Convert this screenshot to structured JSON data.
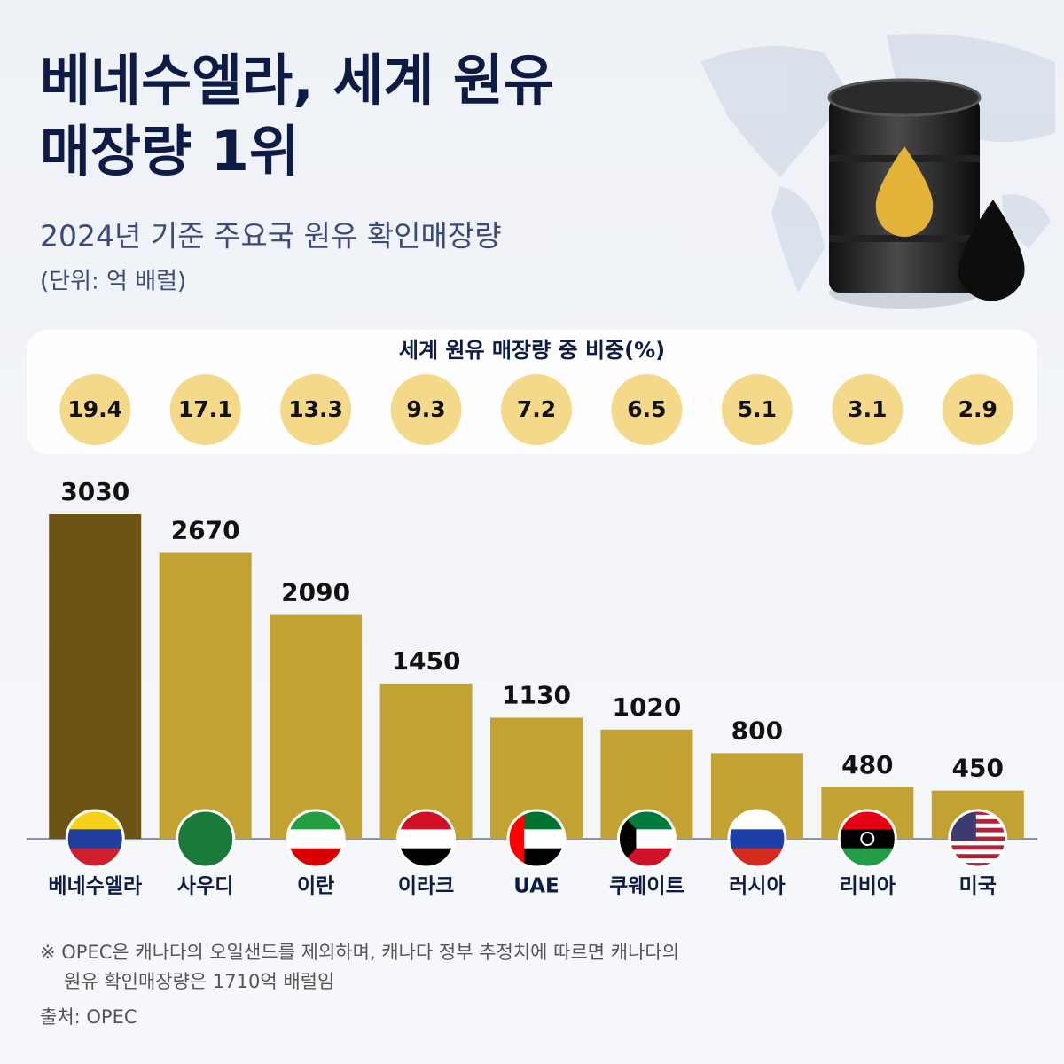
{
  "chart_data": {
    "type": "bar",
    "title": [
      "베네수엘라, 세계 원유",
      "매장량 1위"
    ],
    "subtitle": "2024년 기준 주요국 원유 확인매장량",
    "unit": "(단위: 억 배럴)",
    "share_title": "세계 원유 매장량 중 비중(%)",
    "shares": [
      19.4,
      17.1,
      13.3,
      9.3,
      7.2,
      6.5,
      5.1,
      3.1,
      2.9
    ],
    "share_color": "#f5d98a",
    "categories": [
      "베네수엘라",
      "사우디",
      "이란",
      "이라크",
      "UAE",
      "쿠웨이트",
      "러시아",
      "리비아",
      "미국"
    ],
    "values": [
      3030,
      2670,
      2090,
      1450,
      1130,
      1020,
      800,
      480,
      450
    ],
    "colors": [
      "#6b5414",
      "#c2a232",
      "#c2a232",
      "#c2a232",
      "#c2a232",
      "#c2a232",
      "#c2a232",
      "#c2a232",
      "#c2a232"
    ],
    "note": [
      "※ OPEC은 캐나다의 오일샌드를 제외하며, 캐나다 정부 추정치에 따르면 캐나다의",
      "원유 확인매장량은 1710억 배럴임"
    ],
    "source": "출처: OPEC"
  }
}
